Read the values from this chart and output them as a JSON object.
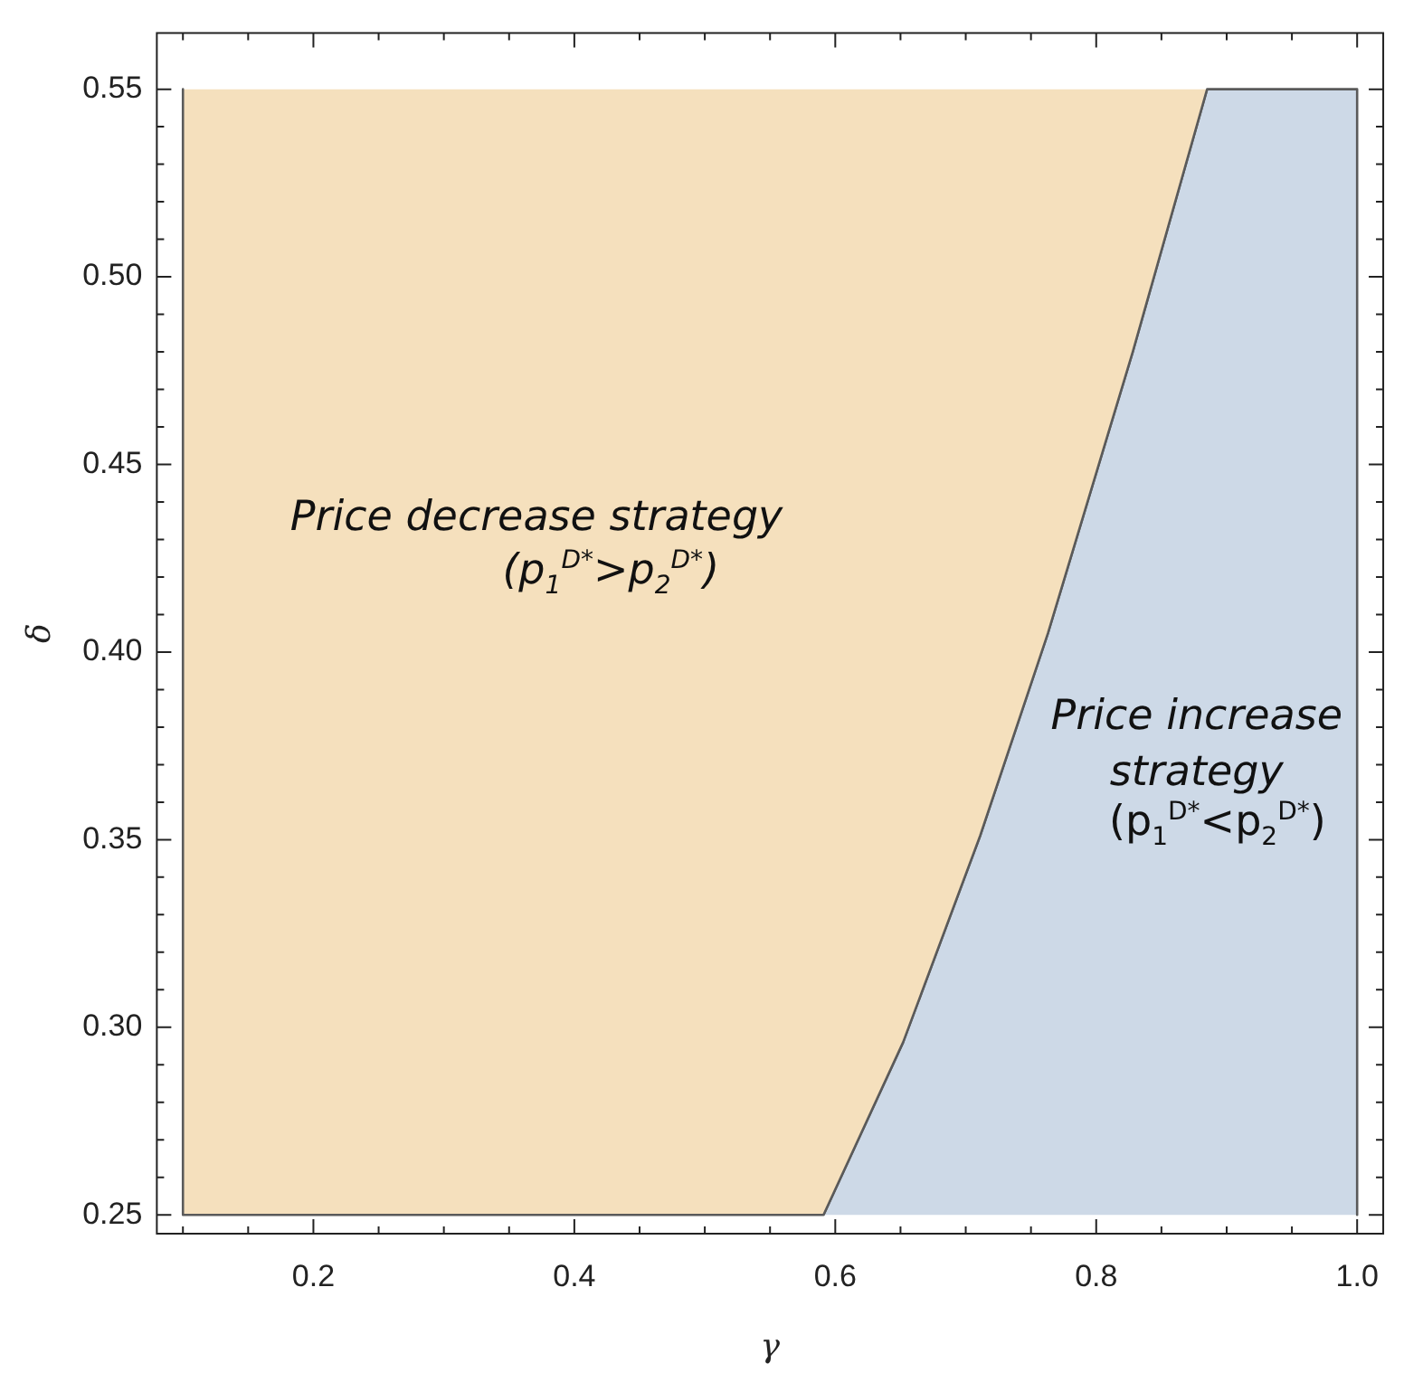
{
  "chart_data": {
    "type": "area",
    "xlabel": "γ",
    "ylabel": "δ",
    "series": [
      {
        "color": "#f5e0bd",
        "x": [
          0.1,
          0.1,
          0.591,
          0.652,
          0.711,
          0.763,
          0.828,
          0.885
        ],
        "values": [
          0.55,
          0.25,
          0.25,
          0.296,
          0.351,
          0.405,
          0.48,
          0.55
        ]
      },
      {
        "color": "#cdd9e7",
        "x": [
          0.591,
          0.652,
          0.711,
          0.763,
          0.828,
          0.885,
          1.0,
          1.0
        ],
        "values": [
          0.25,
          0.296,
          0.351,
          0.405,
          0.48,
          0.55,
          0.55,
          0.25
        ]
      }
    ],
    "xlim": [
      0.08,
      1.02
    ],
    "ylim": [
      0.245,
      0.565
    ],
    "xticks": [
      {
        "value": 0.1,
        "label": null
      },
      {
        "value": 0.15,
        "label": null
      },
      0.2,
      {
        "value": 0.25,
        "label": null
      },
      {
        "value": 0.3,
        "label": null
      },
      {
        "value": 0.35,
        "label": null
      },
      0.4,
      {
        "value": 0.45,
        "label": null
      },
      {
        "value": 0.5,
        "label": null
      },
      {
        "value": 0.55,
        "label": null
      },
      0.6,
      {
        "value": 0.65,
        "label": null
      },
      {
        "value": 0.7,
        "label": null
      },
      {
        "value": 0.75,
        "label": null
      },
      0.8,
      {
        "value": 0.85,
        "label": null
      },
      {
        "value": 0.9,
        "label": null
      },
      {
        "value": 0.95,
        "label": null
      },
      {
        "value": 1.0,
        "label": "1.0"
      }
    ],
    "yticks": [
      0.25,
      {
        "value": 0.26,
        "label": null
      },
      {
        "value": 0.27,
        "label": null
      },
      {
        "value": 0.28,
        "label": null
      },
      {
        "value": 0.29,
        "label": null
      },
      {
        "value": 0.3,
        "label": "0.30"
      },
      {
        "value": 0.31,
        "label": null
      },
      {
        "value": 0.32,
        "label": null
      },
      {
        "value": 0.33,
        "label": null
      },
      {
        "value": 0.34,
        "label": null
      },
      0.35,
      {
        "value": 0.36,
        "label": null
      },
      {
        "value": 0.37,
        "label": null
      },
      {
        "value": 0.38,
        "label": null
      },
      {
        "value": 0.39,
        "label": null
      },
      {
        "value": 0.4,
        "label": "0.40"
      },
      {
        "value": 0.41,
        "label": null
      },
      {
        "value": 0.42,
        "label": null
      },
      {
        "value": 0.43,
        "label": null
      },
      {
        "value": 0.44,
        "label": null
      },
      0.45,
      {
        "value": 0.46,
        "label": null
      },
      {
        "value": 0.47,
        "label": null
      },
      {
        "value": 0.48,
        "label": null
      },
      {
        "value": 0.49,
        "label": null
      },
      {
        "value": 0.5,
        "label": "0.50"
      },
      {
        "value": 0.51,
        "label": null
      },
      {
        "value": 0.52,
        "label": null
      },
      {
        "value": 0.53,
        "label": null
      },
      {
        "value": 0.54,
        "label": null
      },
      0.55
    ],
    "grid": false,
    "legend": false,
    "annotations": [
      "Price decrease strategy",
      "(p$_{1}$$^{D*}$>p$_{2}$$^{D*}$)",
      "Price increase",
      "strategy",
      "(p$_{1}$$^{D*}$<p$_{2}$$^{D*}$)"
    ]
  }
}
